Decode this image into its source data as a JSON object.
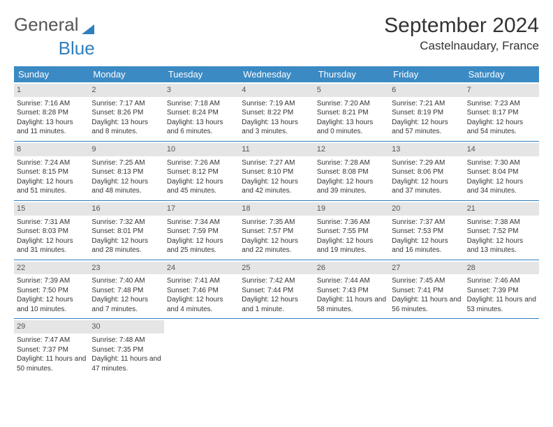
{
  "brand": {
    "part1": "General",
    "part2": "Blue"
  },
  "title": "September 2024",
  "location": "Castelnaudary, France",
  "colors": {
    "header_bg": "#3b8ac4",
    "header_text": "#ffffff",
    "daynum_bg": "#e5e5e5",
    "border": "#2f7fbf",
    "body_text": "#333333"
  },
  "day_names": [
    "Sunday",
    "Monday",
    "Tuesday",
    "Wednesday",
    "Thursday",
    "Friday",
    "Saturday"
  ],
  "days": [
    {
      "n": 1,
      "sunrise": "7:16 AM",
      "sunset": "8:28 PM",
      "daylight": "13 hours and 11 minutes."
    },
    {
      "n": 2,
      "sunrise": "7:17 AM",
      "sunset": "8:26 PM",
      "daylight": "13 hours and 8 minutes."
    },
    {
      "n": 3,
      "sunrise": "7:18 AM",
      "sunset": "8:24 PM",
      "daylight": "13 hours and 6 minutes."
    },
    {
      "n": 4,
      "sunrise": "7:19 AM",
      "sunset": "8:22 PM",
      "daylight": "13 hours and 3 minutes."
    },
    {
      "n": 5,
      "sunrise": "7:20 AM",
      "sunset": "8:21 PM",
      "daylight": "13 hours and 0 minutes."
    },
    {
      "n": 6,
      "sunrise": "7:21 AM",
      "sunset": "8:19 PM",
      "daylight": "12 hours and 57 minutes."
    },
    {
      "n": 7,
      "sunrise": "7:23 AM",
      "sunset": "8:17 PM",
      "daylight": "12 hours and 54 minutes."
    },
    {
      "n": 8,
      "sunrise": "7:24 AM",
      "sunset": "8:15 PM",
      "daylight": "12 hours and 51 minutes."
    },
    {
      "n": 9,
      "sunrise": "7:25 AM",
      "sunset": "8:13 PM",
      "daylight": "12 hours and 48 minutes."
    },
    {
      "n": 10,
      "sunrise": "7:26 AM",
      "sunset": "8:12 PM",
      "daylight": "12 hours and 45 minutes."
    },
    {
      "n": 11,
      "sunrise": "7:27 AM",
      "sunset": "8:10 PM",
      "daylight": "12 hours and 42 minutes."
    },
    {
      "n": 12,
      "sunrise": "7:28 AM",
      "sunset": "8:08 PM",
      "daylight": "12 hours and 39 minutes."
    },
    {
      "n": 13,
      "sunrise": "7:29 AM",
      "sunset": "8:06 PM",
      "daylight": "12 hours and 37 minutes."
    },
    {
      "n": 14,
      "sunrise": "7:30 AM",
      "sunset": "8:04 PM",
      "daylight": "12 hours and 34 minutes."
    },
    {
      "n": 15,
      "sunrise": "7:31 AM",
      "sunset": "8:03 PM",
      "daylight": "12 hours and 31 minutes."
    },
    {
      "n": 16,
      "sunrise": "7:32 AM",
      "sunset": "8:01 PM",
      "daylight": "12 hours and 28 minutes."
    },
    {
      "n": 17,
      "sunrise": "7:34 AM",
      "sunset": "7:59 PM",
      "daylight": "12 hours and 25 minutes."
    },
    {
      "n": 18,
      "sunrise": "7:35 AM",
      "sunset": "7:57 PM",
      "daylight": "12 hours and 22 minutes."
    },
    {
      "n": 19,
      "sunrise": "7:36 AM",
      "sunset": "7:55 PM",
      "daylight": "12 hours and 19 minutes."
    },
    {
      "n": 20,
      "sunrise": "7:37 AM",
      "sunset": "7:53 PM",
      "daylight": "12 hours and 16 minutes."
    },
    {
      "n": 21,
      "sunrise": "7:38 AM",
      "sunset": "7:52 PM",
      "daylight": "12 hours and 13 minutes."
    },
    {
      "n": 22,
      "sunrise": "7:39 AM",
      "sunset": "7:50 PM",
      "daylight": "12 hours and 10 minutes."
    },
    {
      "n": 23,
      "sunrise": "7:40 AM",
      "sunset": "7:48 PM",
      "daylight": "12 hours and 7 minutes."
    },
    {
      "n": 24,
      "sunrise": "7:41 AM",
      "sunset": "7:46 PM",
      "daylight": "12 hours and 4 minutes."
    },
    {
      "n": 25,
      "sunrise": "7:42 AM",
      "sunset": "7:44 PM",
      "daylight": "12 hours and 1 minute."
    },
    {
      "n": 26,
      "sunrise": "7:44 AM",
      "sunset": "7:43 PM",
      "daylight": "11 hours and 58 minutes."
    },
    {
      "n": 27,
      "sunrise": "7:45 AM",
      "sunset": "7:41 PM",
      "daylight": "11 hours and 56 minutes."
    },
    {
      "n": 28,
      "sunrise": "7:46 AM",
      "sunset": "7:39 PM",
      "daylight": "11 hours and 53 minutes."
    },
    {
      "n": 29,
      "sunrise": "7:47 AM",
      "sunset": "7:37 PM",
      "daylight": "11 hours and 50 minutes."
    },
    {
      "n": 30,
      "sunrise": "7:48 AM",
      "sunset": "7:35 PM",
      "daylight": "11 hours and 47 minutes."
    }
  ],
  "labels": {
    "sunrise": "Sunrise:",
    "sunset": "Sunset:",
    "daylight": "Daylight:"
  }
}
